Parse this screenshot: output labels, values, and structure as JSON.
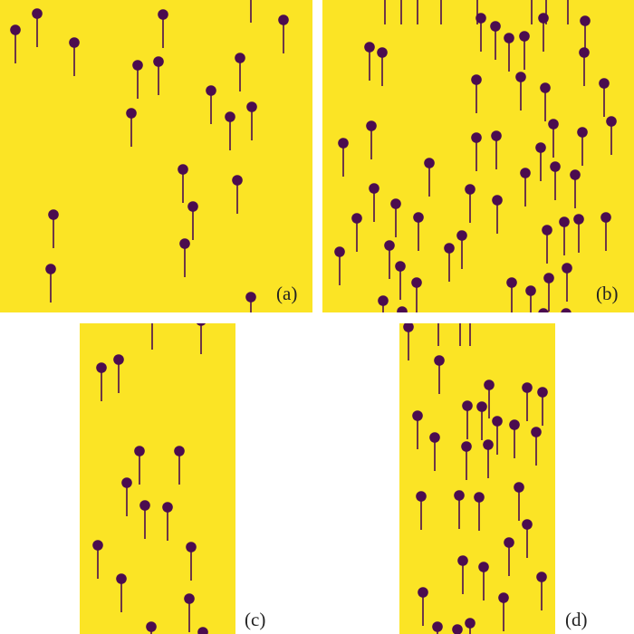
{
  "colors": {
    "background": "#fbe425",
    "pin": "#4b0c4f"
  },
  "panels": [
    {
      "id": "a",
      "label": "(a)"
    },
    {
      "id": "b",
      "label": "(b)"
    },
    {
      "id": "c",
      "label": "(c)"
    },
    {
      "id": "d",
      "label": "(d)"
    }
  ]
}
